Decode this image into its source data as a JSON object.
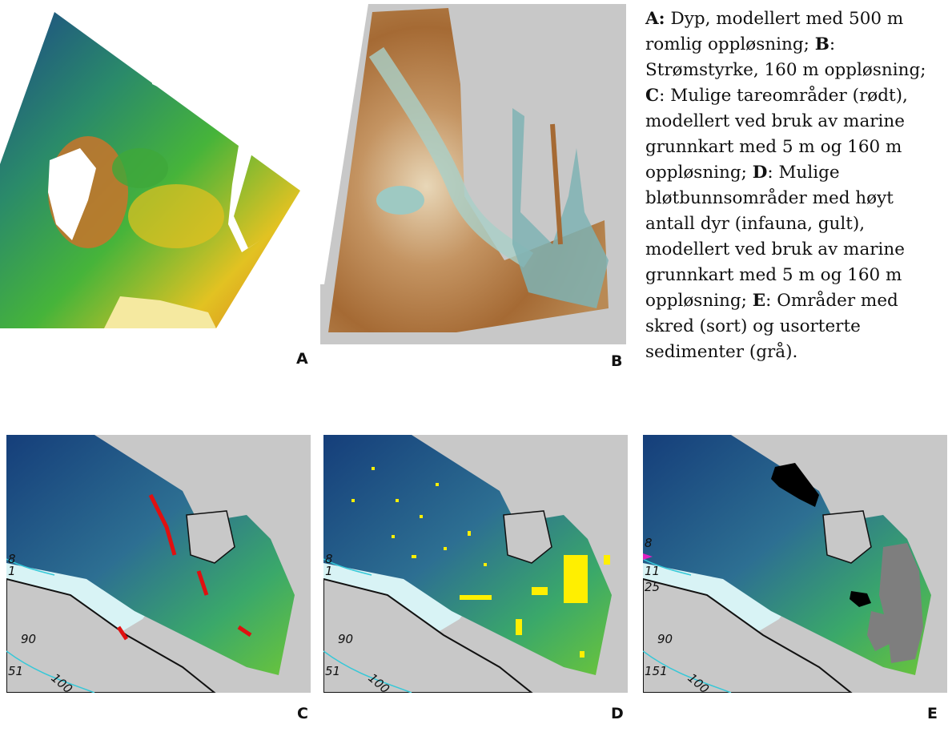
{
  "caption": {
    "a_key": "A:",
    "a_text": " Dyp, modellert med 500 m romlig oppløsning; ",
    "b_key": "B",
    "b_text": ": Strømstyrke, 160 m oppløsning; ",
    "c_key": "C",
    "c_text": ": Mulige tareområder (rødt), modellert ved bruk av marine grunnkart med 5 m og 160 m oppløsning; ",
    "d_key": "D",
    "d_text": ": Mulige bløtbunnsområder med høyt antall dyr (infauna, gult), modellert ved bruk av marine grunnkart med 5 m og 160 m oppløsning; ",
    "e_key": "E",
    "e_text": ": Områder med skred (sort) og usorterte sedimenter (grå)."
  },
  "panels": {
    "a": {
      "label": "A"
    },
    "b": {
      "label": "B"
    },
    "c": {
      "label": "C",
      "depth_labels": [
        "8",
        "1",
        "90",
        "51"
      ]
    },
    "d": {
      "label": "D",
      "depth_labels": [
        "8",
        "1",
        "90",
        "51"
      ]
    },
    "e": {
      "label": "E",
      "depth_labels": [
        "8",
        "11",
        "25",
        "90",
        "151"
      ]
    }
  },
  "contour_label": "100",
  "colors": {
    "deep_blue": "#1d4a86",
    "mid_green": "#3ea83a",
    "yellow": "#f4e21a",
    "orange": "#d77a1d",
    "land_gray": "#c8c8c8",
    "brown": "#a56a34",
    "pale_teal": "#9ec9c2",
    "kelp_red": "#e01010",
    "infauna_yellow": "#ffef00",
    "slide_black": "#000000",
    "sediment_gray": "#7e7e7e",
    "contour_cyan": "#35c8d8"
  }
}
